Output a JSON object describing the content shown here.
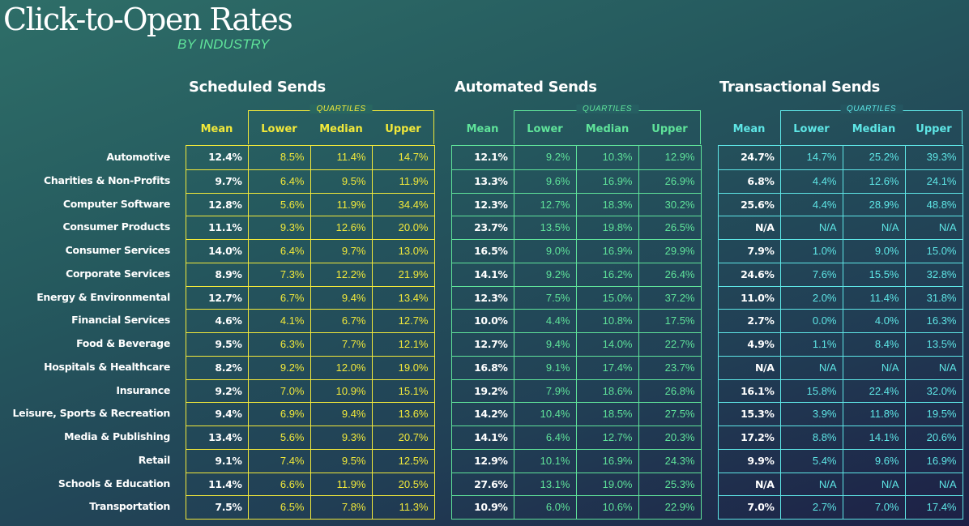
{
  "title": "Click-to-Open Rates",
  "subtitle": "BY INDUSTRY",
  "chart_data": {
    "type": "table",
    "title": "Click-to-Open Rates",
    "subtitle": "BY INDUSTRY",
    "quartiles_label": "QUARTILES",
    "columns": [
      "Mean",
      "Lower",
      "Median",
      "Upper"
    ],
    "industries": [
      "Automotive",
      "Charities & Non-Profits",
      "Computer Software",
      "Consumer Products",
      "Consumer Services",
      "Corporate Services",
      "Energy & Environmental",
      "Financial Services",
      "Food & Beverage",
      "Hospitals & Healthcare",
      "Insurance",
      "Leisure, Sports & Recreation",
      "Media & Publishing",
      "Retail",
      "Schools & Education",
      "Transportation"
    ],
    "tables": [
      {
        "name": "Scheduled Sends",
        "color": "#f2e93a",
        "rows": [
          [
            "12.4%",
            "8.5%",
            "11.4%",
            "14.7%"
          ],
          [
            "9.7%",
            "6.4%",
            "9.5%",
            "11.9%"
          ],
          [
            "12.8%",
            "5.6%",
            "11.9%",
            "34.4%"
          ],
          [
            "11.1%",
            "9.3%",
            "12.6%",
            "20.0%"
          ],
          [
            "14.0%",
            "6.4%",
            "9.7%",
            "13.0%"
          ],
          [
            "8.9%",
            "7.3%",
            "12.2%",
            "21.9%"
          ],
          [
            "12.7%",
            "6.7%",
            "9.4%",
            "13.4%"
          ],
          [
            "4.6%",
            "4.1%",
            "6.7%",
            "12.7%"
          ],
          [
            "9.5%",
            "6.3%",
            "7.7%",
            "12.1%"
          ],
          [
            "8.2%",
            "9.2%",
            "12.0%",
            "19.0%"
          ],
          [
            "9.2%",
            "7.0%",
            "10.9%",
            "15.1%"
          ],
          [
            "9.4%",
            "6.9%",
            "9.4%",
            "13.6%"
          ],
          [
            "13.4%",
            "5.6%",
            "9.3%",
            "20.7%"
          ],
          [
            "9.1%",
            "7.4%",
            "9.5%",
            "12.5%"
          ],
          [
            "11.4%",
            "6.6%",
            "11.9%",
            "20.5%"
          ],
          [
            "7.5%",
            "6.5%",
            "7.8%",
            "11.3%"
          ]
        ]
      },
      {
        "name": "Automated Sends",
        "color": "#5fe39a",
        "rows": [
          [
            "12.1%",
            "9.2%",
            "10.3%",
            "12.9%"
          ],
          [
            "13.3%",
            "9.6%",
            "16.9%",
            "26.9%"
          ],
          [
            "12.3%",
            "12.7%",
            "18.3%",
            "30.2%"
          ],
          [
            "23.7%",
            "13.5%",
            "19.8%",
            "26.5%"
          ],
          [
            "16.5%",
            "9.0%",
            "16.9%",
            "29.9%"
          ],
          [
            "14.1%",
            "9.2%",
            "16.2%",
            "26.4%"
          ],
          [
            "12.3%",
            "7.5%",
            "15.0%",
            "37.2%"
          ],
          [
            "10.0%",
            "4.4%",
            "10.8%",
            "17.5%"
          ],
          [
            "12.7%",
            "9.4%",
            "14.0%",
            "22.7%"
          ],
          [
            "16.8%",
            "9.1%",
            "17.4%",
            "23.7%"
          ],
          [
            "19.2%",
            "7.9%",
            "18.6%",
            "26.8%"
          ],
          [
            "14.2%",
            "10.4%",
            "18.5%",
            "27.5%"
          ],
          [
            "14.1%",
            "6.4%",
            "12.7%",
            "20.3%"
          ],
          [
            "12.9%",
            "10.1%",
            "16.9%",
            "24.3%"
          ],
          [
            "27.6%",
            "13.1%",
            "19.0%",
            "25.3%"
          ],
          [
            "10.9%",
            "6.0%",
            "10.6%",
            "22.9%"
          ]
        ]
      },
      {
        "name": "Transactional Sends",
        "color": "#5ee6e6",
        "rows": [
          [
            "24.7%",
            "14.7%",
            "25.2%",
            "39.3%"
          ],
          [
            "6.8%",
            "4.4%",
            "12.6%",
            "24.1%"
          ],
          [
            "25.6%",
            "4.4%",
            "28.9%",
            "48.8%"
          ],
          [
            "N/A",
            "N/A",
            "N/A",
            "N/A"
          ],
          [
            "7.9%",
            "1.0%",
            "9.0%",
            "15.0%"
          ],
          [
            "24.6%",
            "7.6%",
            "15.5%",
            "32.8%"
          ],
          [
            "11.0%",
            "2.0%",
            "11.4%",
            "31.8%"
          ],
          [
            "2.7%",
            "0.0%",
            "4.0%",
            "16.3%"
          ],
          [
            "4.9%",
            "1.1%",
            "8.4%",
            "13.5%"
          ],
          [
            "N/A",
            "N/A",
            "N/A",
            "N/A"
          ],
          [
            "16.1%",
            "15.8%",
            "22.4%",
            "32.0%"
          ],
          [
            "15.3%",
            "3.9%",
            "11.8%",
            "19.5%"
          ],
          [
            "17.2%",
            "8.8%",
            "14.1%",
            "20.6%"
          ],
          [
            "9.9%",
            "5.4%",
            "9.6%",
            "16.9%"
          ],
          [
            "N/A",
            "N/A",
            "N/A",
            "N/A"
          ],
          [
            "7.0%",
            "2.7%",
            "7.0%",
            "17.4%"
          ]
        ]
      }
    ]
  }
}
